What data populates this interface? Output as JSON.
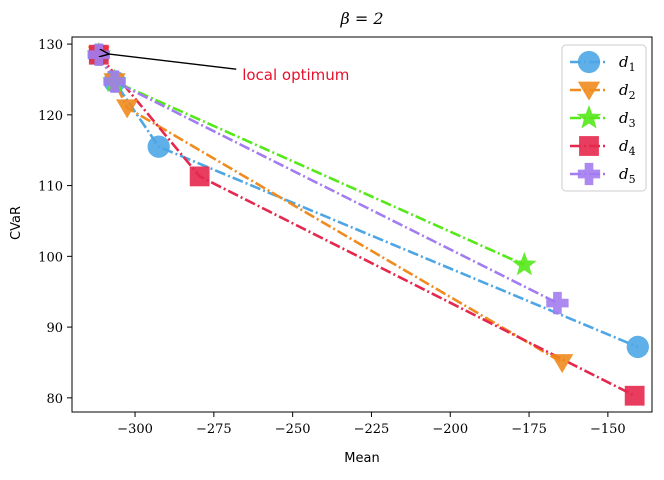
{
  "chart_data": {
    "type": "line",
    "title": "β = 2",
    "xlabel": "Mean",
    "ylabel": "CVaR",
    "xlim": [
      -320,
      -136
    ],
    "ylim": [
      78,
      131
    ],
    "xticks": [
      -300,
      -275,
      -250,
      -225,
      -200,
      -175,
      -150
    ],
    "yticks": [
      80,
      90,
      100,
      110,
      120,
      130
    ],
    "x_tick_labels": [
      "−300",
      "−275",
      "−250",
      "−225",
      "−200",
      "−175",
      "−150"
    ],
    "y_tick_labels": [
      "80",
      "90",
      "100",
      "110",
      "120",
      "130"
    ],
    "grid": false,
    "legend_position": "top-right",
    "series": [
      {
        "name": "d1",
        "legend_base": "d",
        "legend_sub": "1",
        "color": "#4ea6e5",
        "marker": "circle",
        "points": [
          [
            -311.5,
            128.5
          ],
          [
            -306.5,
            124.7
          ],
          [
            -292.5,
            115.5
          ],
          [
            -140.5,
            87.2
          ]
        ]
      },
      {
        "name": "d2",
        "legend_base": "d",
        "legend_sub": "2",
        "color": "#f08b1f",
        "marker": "triangle-down",
        "points": [
          [
            -311.5,
            128.5
          ],
          [
            -306.5,
            124.7
          ],
          [
            -302.5,
            121.0
          ],
          [
            -164.5,
            85.0
          ]
        ]
      },
      {
        "name": "d3",
        "legend_base": "d",
        "legend_sub": "3",
        "color": "#55e81a",
        "marker": "star",
        "points": [
          [
            -311.5,
            128.5
          ],
          [
            -306.5,
            124.7
          ],
          [
            -176.5,
            98.8
          ]
        ]
      },
      {
        "name": "d4",
        "legend_base": "d",
        "legend_sub": "4",
        "color": "#e5284d",
        "marker": "square",
        "points": [
          [
            -311.5,
            128.5
          ],
          [
            -279.5,
            111.3
          ],
          [
            -141.5,
            80.3
          ]
        ]
      },
      {
        "name": "d5",
        "legend_base": "d",
        "legend_sub": "5",
        "color": "#a27cf0",
        "marker": "plus",
        "points": [
          [
            -311.5,
            128.5
          ],
          [
            -306.5,
            124.7
          ],
          [
            -166.0,
            93.4
          ]
        ]
      }
    ],
    "annotation": {
      "text": "local optimum",
      "color": "#e8112d",
      "text_at": [
        -266,
        125.6
      ],
      "arrow_to": [
        -309.5,
        128.6
      ]
    }
  }
}
